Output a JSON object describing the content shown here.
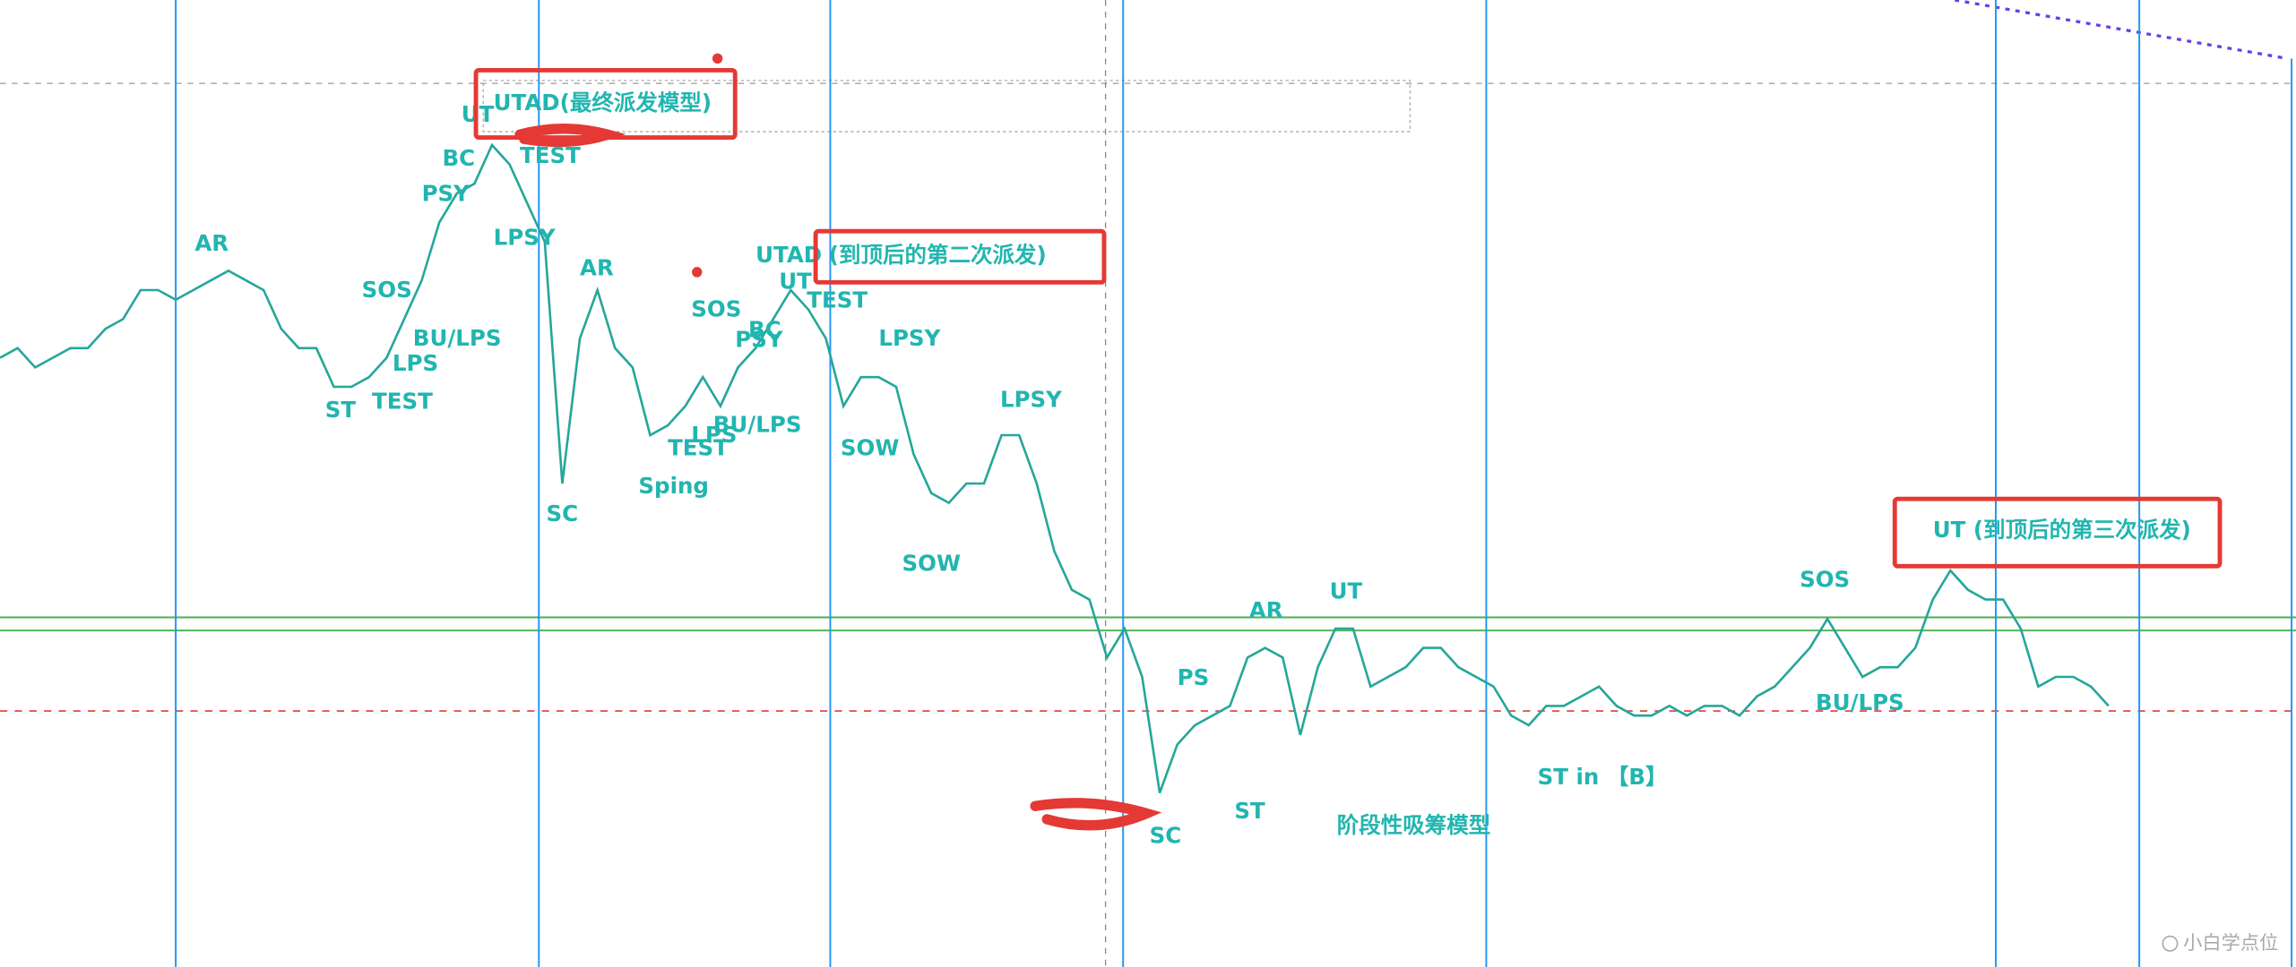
{
  "chart_data": {
    "type": "line",
    "color": "#26a69a",
    "values": [
      63,
      64,
      62,
      63,
      64,
      64,
      66,
      67,
      70,
      70,
      69,
      70,
      71,
      72,
      71,
      70,
      66,
      64,
      64,
      60,
      60,
      61,
      63,
      67,
      71,
      77,
      80,
      81,
      85,
      83,
      79,
      75,
      50,
      65,
      70,
      64,
      62,
      55,
      56,
      58,
      61,
      58,
      62,
      64,
      67,
      70,
      68,
      65,
      58,
      61,
      61,
      60,
      53,
      49,
      48,
      50,
      50,
      55,
      55,
      50,
      43,
      39,
      38,
      32,
      35,
      30,
      18,
      23,
      25,
      26,
      27,
      32,
      33,
      32,
      24,
      31,
      35,
      35,
      29,
      30,
      31,
      33,
      33,
      31,
      30,
      29,
      26,
      25,
      27,
      27,
      28,
      29,
      27,
      26,
      26,
      27,
      26,
      27,
      27,
      26,
      28,
      29,
      31,
      33,
      36,
      33,
      30,
      31,
      31,
      33,
      38,
      41,
      39,
      38,
      38,
      35,
      29,
      30,
      30,
      29,
      27
    ],
    "ylim": [
      0,
      100
    ],
    "annotations": [
      "AR",
      "SOS",
      "ST",
      "TEST",
      "LPS",
      "BU/LPS",
      "PSY",
      "BC",
      "UT",
      "TEST",
      "LPSY",
      "SC",
      "AR",
      "Sping",
      "SOS",
      "LPS",
      "TEST",
      "BU/LPS",
      "PSY",
      "BC",
      "UT",
      "UTAD",
      "TEST",
      "LPSY",
      "SOW",
      "SOW",
      "LPSY",
      "SC",
      "PS",
      "ST",
      "AR",
      "UT",
      "阶段性吸筹模型",
      "ST in 【B】",
      "SOS",
      "BU/LPS"
    ],
    "callouts": [
      "UTAD(最终派发模型)",
      "(到顶后的第二次派发)",
      "UT (到顶后的第三次派发)"
    ],
    "watermark": "小白学点位"
  }
}
